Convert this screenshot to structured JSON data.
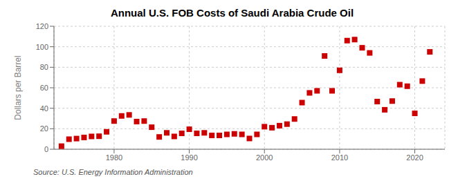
{
  "chart_data": {
    "type": "scatter",
    "title": "Annual U.S. FOB Costs of Saudi Arabia Crude Oil",
    "y_label": "Dollars per Barrel",
    "annotations": [
      "Source: U.S. Energy Information Administration"
    ],
    "x": [
      1973,
      1974,
      1975,
      1976,
      1977,
      1978,
      1979,
      1980,
      1981,
      1982,
      1983,
      1984,
      1985,
      1986,
      1987,
      1988,
      1989,
      1990,
      1991,
      1992,
      1993,
      1994,
      1995,
      1996,
      1997,
      1998,
      1999,
      2000,
      2001,
      2002,
      2003,
      2004,
      2005,
      2006,
      2007,
      2008,
      2009,
      2010,
      2011,
      2012,
      2013,
      2014,
      2015,
      2016,
      2017,
      2018,
      2019,
      2020,
      2021,
      2022
    ],
    "values": [
      3.0,
      9.8,
      10.4,
      11.5,
      12.5,
      12.7,
      17.0,
      27.5,
      32.5,
      33.5,
      27.0,
      27.5,
      21.5,
      12.0,
      16.0,
      12.5,
      15.5,
      19.5,
      15.5,
      16.0,
      13.5,
      13.5,
      14.5,
      15.0,
      14.5,
      10.5,
      14.5,
      22.0,
      21.0,
      23.0,
      24.5,
      29.5,
      45.5,
      55.0,
      57.0,
      91.0,
      57.0,
      77.0,
      106.0,
      107.0,
      99.0,
      94.0,
      46.5,
      38.5,
      47.0,
      63.0,
      61.5,
      35.0,
      66.5,
      95.0
    ],
    "color": "#cc0000",
    "marker": "square",
    "xlim": [
      1972,
      2024
    ],
    "xticks": [
      1980,
      1990,
      2000,
      2010,
      2020
    ],
    "ylim": [
      0,
      120
    ],
    "yticks": [
      0,
      20,
      40,
      60,
      80,
      100,
      120
    ],
    "grid": true
  }
}
